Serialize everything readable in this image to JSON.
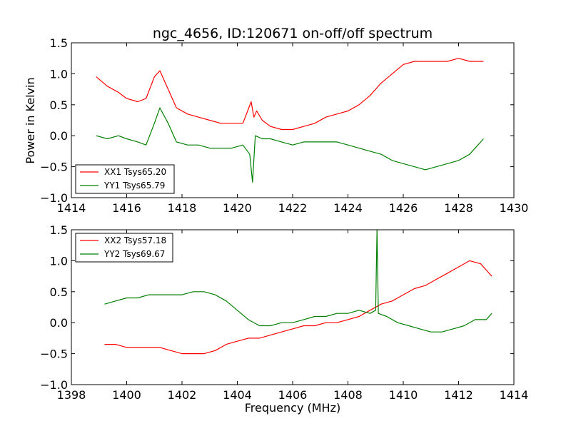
{
  "figure": {
    "title": "ngc_4656, ID:120671 on-off/off spectrum",
    "ylabel": "Power in Kelvin",
    "xlabel": "Frequency (MHz)"
  },
  "colors": {
    "red": "#ff0000",
    "green": "#007f00"
  },
  "chart_data": [
    {
      "type": "line",
      "title": "ngc_4656, ID:120671 on-off/off spectrum",
      "ylabel": "Power in Kelvin",
      "xlabel": "",
      "xlim": [
        1414,
        1430
      ],
      "ylim": [
        -1.0,
        1.5
      ],
      "xticks": [
        1414,
        1416,
        1418,
        1420,
        1422,
        1424,
        1426,
        1428,
        1430
      ],
      "yticks": [
        -1.0,
        -0.5,
        0.0,
        0.5,
        1.0,
        1.5
      ],
      "legend_position": "lower-left",
      "series": [
        {
          "name": "XX1 Tsys65.20",
          "color": "#ff0000",
          "x": [
            1414.9,
            1415.3,
            1415.7,
            1416.0,
            1416.4,
            1416.7,
            1417.0,
            1417.2,
            1417.5,
            1417.8,
            1418.2,
            1418.6,
            1419.0,
            1419.4,
            1419.8,
            1420.2,
            1420.5,
            1420.6,
            1420.7,
            1420.9,
            1421.2,
            1421.6,
            1422.0,
            1422.4,
            1422.8,
            1423.2,
            1423.6,
            1424.0,
            1424.4,
            1424.8,
            1425.2,
            1425.6,
            1426.0,
            1426.4,
            1426.8,
            1427.2,
            1427.6,
            1428.0,
            1428.4,
            1428.9
          ],
          "y": [
            0.95,
            0.8,
            0.7,
            0.6,
            0.55,
            0.6,
            0.95,
            1.05,
            0.75,
            0.45,
            0.35,
            0.3,
            0.25,
            0.2,
            0.2,
            0.2,
            0.55,
            0.3,
            0.4,
            0.25,
            0.15,
            0.1,
            0.1,
            0.15,
            0.2,
            0.3,
            0.35,
            0.4,
            0.5,
            0.65,
            0.85,
            1.0,
            1.15,
            1.2,
            1.2,
            1.2,
            1.2,
            1.25,
            1.2,
            1.2
          ]
        },
        {
          "name": "YY1 Tsys65.79",
          "color": "#007f00",
          "x": [
            1414.9,
            1415.3,
            1415.7,
            1416.0,
            1416.4,
            1416.7,
            1417.0,
            1417.2,
            1417.5,
            1417.8,
            1418.2,
            1418.6,
            1419.0,
            1419.4,
            1419.8,
            1420.2,
            1420.45,
            1420.55,
            1420.65,
            1420.9,
            1421.2,
            1421.6,
            1422.0,
            1422.4,
            1422.8,
            1423.2,
            1423.6,
            1424.0,
            1424.4,
            1424.8,
            1425.2,
            1425.6,
            1426.0,
            1426.4,
            1426.8,
            1427.2,
            1427.6,
            1428.0,
            1428.4,
            1428.9
          ],
          "y": [
            0.0,
            -0.05,
            0.0,
            -0.05,
            -0.1,
            -0.15,
            0.2,
            0.45,
            0.2,
            -0.1,
            -0.15,
            -0.15,
            -0.2,
            -0.2,
            -0.2,
            -0.15,
            -0.3,
            -0.75,
            0.0,
            -0.05,
            -0.05,
            -0.1,
            -0.15,
            -0.1,
            -0.1,
            -0.1,
            -0.1,
            -0.15,
            -0.2,
            -0.25,
            -0.3,
            -0.4,
            -0.45,
            -0.5,
            -0.55,
            -0.5,
            -0.45,
            -0.4,
            -0.3,
            -0.05
          ]
        }
      ]
    },
    {
      "type": "line",
      "title": "",
      "ylabel": "",
      "xlabel": "Frequency (MHz)",
      "xlim": [
        1398,
        1414
      ],
      "ylim": [
        -1.0,
        1.5
      ],
      "xticks": [
        1398,
        1400,
        1402,
        1404,
        1406,
        1408,
        1410,
        1412,
        1414
      ],
      "yticks": [
        -1.0,
        -0.5,
        0.0,
        0.5,
        1.0,
        1.5
      ],
      "legend_position": "upper-left",
      "series": [
        {
          "name": "XX2 Tsys57.18",
          "color": "#ff0000",
          "x": [
            1399.2,
            1399.6,
            1400.0,
            1400.4,
            1400.8,
            1401.2,
            1401.6,
            1402.0,
            1402.4,
            1402.8,
            1403.2,
            1403.6,
            1404.0,
            1404.4,
            1404.8,
            1405.2,
            1405.6,
            1406.0,
            1406.4,
            1406.8,
            1407.2,
            1407.6,
            1408.0,
            1408.4,
            1408.8,
            1409.2,
            1409.6,
            1410.0,
            1410.4,
            1410.8,
            1411.2,
            1411.6,
            1412.0,
            1412.4,
            1412.8,
            1413.2
          ],
          "y": [
            -0.35,
            -0.35,
            -0.4,
            -0.4,
            -0.4,
            -0.4,
            -0.45,
            -0.5,
            -0.5,
            -0.5,
            -0.45,
            -0.35,
            -0.3,
            -0.25,
            -0.25,
            -0.2,
            -0.15,
            -0.1,
            -0.05,
            -0.05,
            0.0,
            0.0,
            0.05,
            0.1,
            0.2,
            0.3,
            0.35,
            0.45,
            0.55,
            0.6,
            0.7,
            0.8,
            0.9,
            1.0,
            0.95,
            0.75
          ]
        },
        {
          "name": "YY2 Tsys69.67",
          "color": "#007f00",
          "x": [
            1399.2,
            1399.6,
            1400.0,
            1400.4,
            1400.8,
            1401.2,
            1401.6,
            1402.0,
            1402.4,
            1402.8,
            1403.2,
            1403.6,
            1404.0,
            1404.4,
            1404.8,
            1405.2,
            1405.6,
            1406.0,
            1406.4,
            1406.8,
            1407.2,
            1407.6,
            1408.0,
            1408.4,
            1408.8,
            1409.0,
            1409.05,
            1409.1,
            1409.4,
            1409.8,
            1410.2,
            1410.6,
            1411.0,
            1411.4,
            1411.8,
            1412.2,
            1412.6,
            1413.0,
            1413.2
          ],
          "y": [
            0.3,
            0.35,
            0.4,
            0.4,
            0.45,
            0.45,
            0.45,
            0.45,
            0.5,
            0.5,
            0.45,
            0.35,
            0.2,
            0.05,
            -0.05,
            -0.05,
            0.0,
            0.0,
            0.05,
            0.1,
            0.1,
            0.15,
            0.15,
            0.2,
            0.15,
            0.2,
            1.5,
            0.15,
            0.1,
            0.0,
            -0.05,
            -0.1,
            -0.15,
            -0.15,
            -0.1,
            -0.05,
            0.05,
            0.05,
            0.15
          ]
        }
      ]
    }
  ]
}
